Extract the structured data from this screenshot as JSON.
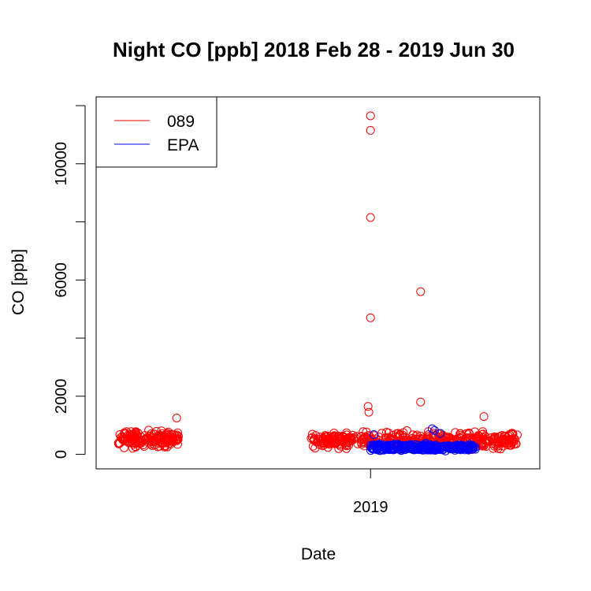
{
  "chart_data": {
    "type": "scatter",
    "title": "Night CO [ppb] 2018 Feb 28 - 2019 Jun 30",
    "xlabel": "Date",
    "ylabel": "CO [ppb]",
    "x_axis_type": "date",
    "xlim": [
      "2018-02-01",
      "2019-07-26"
    ],
    "x_ticks": [
      {
        "value": "2019-01-01",
        "label": "2019"
      }
    ],
    "ylim": [
      -500,
      12300
    ],
    "y_ticks": [
      0,
      2000,
      6000,
      10000
    ],
    "y_minor_ticks": [
      4000,
      8000,
      12000
    ],
    "grid": false,
    "legend": {
      "placement": "top-left",
      "entries": [
        {
          "label": "089",
          "color": "#ff0000"
        },
        {
          "label": "EPA",
          "color": "#0000ff"
        }
      ]
    },
    "series": [
      {
        "name": "089",
        "color": "#ff0000",
        "marker": "open-circle",
        "segments": [
          {
            "start": "2018-02-28",
            "end": "2018-05-13",
            "center": 520,
            "spread": 260,
            "n": 180
          },
          {
            "start": "2018-10-20",
            "end": "2019-06-30",
            "center": 480,
            "spread": 260,
            "n": 460
          }
        ],
        "points": [
          {
            "x": "2019-01-01",
            "y": 11650
          },
          {
            "x": "2019-01-01",
            "y": 11150
          },
          {
            "x": "2019-01-01",
            "y": 8150
          },
          {
            "x": "2019-01-01",
            "y": 4700
          },
          {
            "x": "2018-12-29",
            "y": 1650
          },
          {
            "x": "2018-12-30",
            "y": 1450
          },
          {
            "x": "2019-03-03",
            "y": 5600
          },
          {
            "x": "2019-03-03",
            "y": 1800
          },
          {
            "x": "2018-05-10",
            "y": 1250
          },
          {
            "x": "2019-05-19",
            "y": 1300
          }
        ]
      },
      {
        "name": "EPA",
        "color": "#0000ff",
        "marker": "open-circle",
        "segments": [
          {
            "start": "2019-01-01",
            "end": "2019-05-09",
            "center": 230,
            "spread": 110,
            "n": 330
          }
        ],
        "points": [
          {
            "x": "2019-03-17",
            "y": 880
          },
          {
            "x": "2019-03-20",
            "y": 820
          },
          {
            "x": "2019-03-27",
            "y": 720
          },
          {
            "x": "2019-01-05",
            "y": 680
          }
        ]
      }
    ]
  }
}
